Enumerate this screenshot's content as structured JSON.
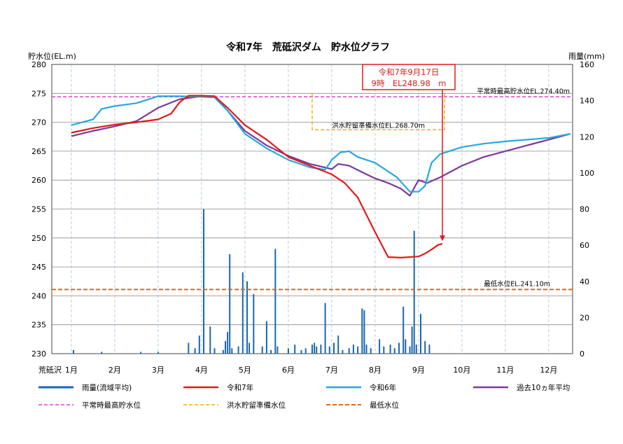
{
  "chart_data": {
    "type": "line",
    "title": "令和7年　荒砥沢ダム　貯水位グラフ",
    "ylabel_left": "貯水位(EL.m)",
    "ylabel_right": "雨量(mm)",
    "x_label_prefix": "荒砥沢",
    "months": [
      "1月",
      "2月",
      "3月",
      "4月",
      "5月",
      "6月",
      "7月",
      "8月",
      "9月",
      "10月",
      "11月",
      "12月"
    ],
    "ylim_left": [
      230,
      280
    ],
    "yticks_left": [
      "230",
      "235",
      "240",
      "245",
      "250",
      "255",
      "260",
      "265",
      "270",
      "275",
      "280"
    ],
    "ylim_right": [
      0,
      160
    ],
    "yticks_right": [
      "0",
      "20",
      "40",
      "60",
      "80",
      "100",
      "120",
      "140",
      "160"
    ],
    "grid": true,
    "legend_placement": "bottom",
    "annotation": {
      "line1": "令和7年9月17日",
      "line2": "9時　EL248.98　m",
      "month": 9.55,
      "value": 248.98
    },
    "reference_lines": [
      {
        "label": "平常時最高貯水位EL.274.40m",
        "value": 274.4,
        "color": "#e040c8"
      },
      {
        "label": "洪水貯留準備水位EL.268.70m",
        "value": 268.7,
        "color": "#f0b000"
      },
      {
        "label": "最低水位EL.241.10m",
        "value": 241.1,
        "color": "#e06a10"
      }
    ],
    "series": [
      {
        "name": "令和7年",
        "color": "#e01a1a",
        "points": [
          [
            1,
            268.2
          ],
          [
            1.5,
            269
          ],
          [
            2,
            269.6
          ],
          [
            2.5,
            270
          ],
          [
            3,
            270.5
          ],
          [
            3.3,
            271.5
          ],
          [
            3.5,
            273.5
          ],
          [
            3.7,
            274.6
          ],
          [
            4,
            274.6
          ],
          [
            4.3,
            274.5
          ],
          [
            4.6,
            272.5
          ],
          [
            5,
            269.5
          ],
          [
            5.5,
            267
          ],
          [
            6,
            264
          ],
          [
            6.5,
            262.5
          ],
          [
            7,
            261
          ],
          [
            7.3,
            259.5
          ],
          [
            7.6,
            257
          ],
          [
            8,
            251
          ],
          [
            8.3,
            246.7
          ],
          [
            8.6,
            246.6
          ],
          [
            9,
            246.8
          ],
          [
            9.15,
            247.3
          ],
          [
            9.3,
            248
          ],
          [
            9.45,
            248.8
          ],
          [
            9.55,
            248.98
          ]
        ]
      },
      {
        "name": "令和6年",
        "color": "#27a8e0",
        "points": [
          [
            1,
            269.5
          ],
          [
            1.5,
            270.5
          ],
          [
            1.7,
            272.3
          ],
          [
            2,
            272.8
          ],
          [
            2.5,
            273.3
          ],
          [
            3,
            274.5
          ],
          [
            3.5,
            274.5
          ],
          [
            4,
            274.4
          ],
          [
            4.3,
            274.3
          ],
          [
            4.6,
            272
          ],
          [
            5,
            268
          ],
          [
            5.5,
            265.5
          ],
          [
            6,
            263.5
          ],
          [
            6.5,
            262.2
          ],
          [
            6.85,
            261.8
          ],
          [
            7,
            263.5
          ],
          [
            7.2,
            264.8
          ],
          [
            7.4,
            265
          ],
          [
            7.6,
            264
          ],
          [
            7.8,
            263.5
          ],
          [
            8,
            263
          ],
          [
            8.2,
            262
          ],
          [
            8.5,
            260.5
          ],
          [
            8.8,
            258
          ],
          [
            9,
            258
          ],
          [
            9.15,
            259
          ],
          [
            9.3,
            263
          ],
          [
            9.5,
            264.5
          ],
          [
            10,
            265.7
          ],
          [
            10.5,
            266.3
          ],
          [
            11,
            266.7
          ],
          [
            11.5,
            267
          ],
          [
            12,
            267.3
          ],
          [
            12.5,
            268
          ]
        ]
      },
      {
        "name": "過去10ヵ年平均",
        "color": "#7b3a9a",
        "points": [
          [
            1,
            267.6
          ],
          [
            1.5,
            268.5
          ],
          [
            2,
            269.3
          ],
          [
            2.5,
            270.2
          ],
          [
            3,
            272.5
          ],
          [
            3.5,
            274
          ],
          [
            4,
            274.5
          ],
          [
            4.3,
            274.5
          ],
          [
            4.6,
            272
          ],
          [
            5,
            268.5
          ],
          [
            5.5,
            266
          ],
          [
            6,
            264.2
          ],
          [
            6.5,
            262.8
          ],
          [
            7,
            261.9
          ],
          [
            7.15,
            262.8
          ],
          [
            7.4,
            262.5
          ],
          [
            7.8,
            261
          ],
          [
            8,
            260.3
          ],
          [
            8.3,
            259.5
          ],
          [
            8.6,
            258.5
          ],
          [
            8.8,
            257.3
          ],
          [
            9,
            260
          ],
          [
            9.2,
            259.5
          ],
          [
            9.5,
            260.5
          ],
          [
            10,
            262.5
          ],
          [
            10.5,
            264
          ],
          [
            11,
            265
          ],
          [
            11.5,
            266
          ],
          [
            12,
            267
          ],
          [
            12.5,
            268
          ]
        ]
      }
    ],
    "rainfall": {
      "name": "雨量(流域平均)",
      "color": "#1a66b0",
      "bars": [
        [
          1.05,
          2
        ],
        [
          1.7,
          1
        ],
        [
          2.6,
          1
        ],
        [
          3,
          1
        ],
        [
          3.7,
          6
        ],
        [
          3.85,
          3
        ],
        [
          3.95,
          10
        ],
        [
          4.05,
          80
        ],
        [
          4.2,
          15
        ],
        [
          4.3,
          3
        ],
        [
          4.5,
          2
        ],
        [
          4.55,
          7
        ],
        [
          4.6,
          12
        ],
        [
          4.65,
          55
        ],
        [
          4.7,
          3
        ],
        [
          4.85,
          4
        ],
        [
          4.95,
          45
        ],
        [
          5.05,
          40
        ],
        [
          5.1,
          6
        ],
        [
          5.2,
          33
        ],
        [
          5.4,
          4
        ],
        [
          5.5,
          18
        ],
        [
          5.6,
          2
        ],
        [
          5.7,
          58
        ],
        [
          5.75,
          4
        ],
        [
          6,
          3
        ],
        [
          6.15,
          5
        ],
        [
          6.3,
          2
        ],
        [
          6.4,
          3
        ],
        [
          6.55,
          5
        ],
        [
          6.6,
          6
        ],
        [
          6.65,
          4
        ],
        [
          6.75,
          5
        ],
        [
          6.85,
          28
        ],
        [
          6.95,
          4
        ],
        [
          7.05,
          6
        ],
        [
          7.15,
          10
        ],
        [
          7.25,
          2
        ],
        [
          7.4,
          3
        ],
        [
          7.5,
          5
        ],
        [
          7.6,
          4
        ],
        [
          7.7,
          25
        ],
        [
          7.75,
          24
        ],
        [
          7.8,
          5
        ],
        [
          7.9,
          3
        ],
        [
          8.1,
          8
        ],
        [
          8.2,
          4
        ],
        [
          8.35,
          5
        ],
        [
          8.45,
          3
        ],
        [
          8.55,
          6
        ],
        [
          8.65,
          26
        ],
        [
          8.7,
          8
        ],
        [
          8.8,
          4
        ],
        [
          8.85,
          15
        ],
        [
          8.9,
          68
        ],
        [
          8.95,
          5
        ],
        [
          9.05,
          22
        ],
        [
          9.15,
          7
        ],
        [
          9.25,
          5
        ]
      ]
    }
  }
}
